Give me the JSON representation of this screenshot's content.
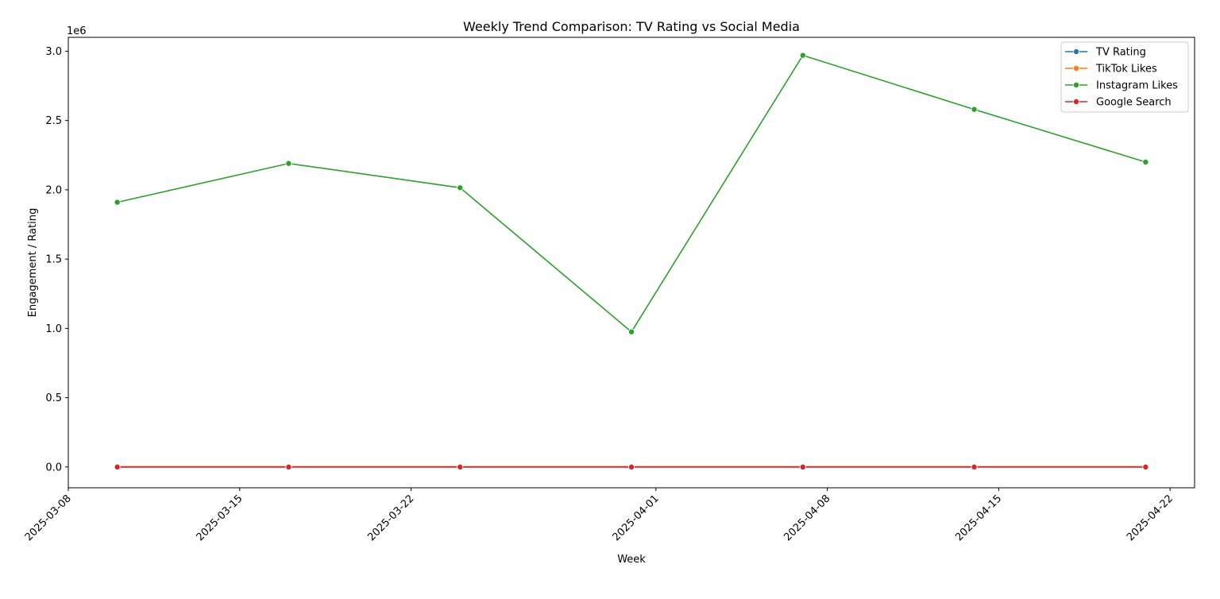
{
  "chart_data": {
    "type": "line",
    "title": "Weekly Trend Comparison: TV Rating vs Social Media",
    "xlabel": "Week",
    "ylabel": "Engagement / Rating",
    "y_offset_label": "1e6",
    "x": [
      "2025-03-10",
      "2025-03-17",
      "2025-03-24",
      "2025-03-31",
      "2025-04-07",
      "2025-04-14",
      "2025-04-21"
    ],
    "xlim": [
      "2025-03-08",
      "2025-04-23"
    ],
    "x_ticks": [
      "2025-03-08",
      "2025-03-15",
      "2025-03-22",
      "2025-04-01",
      "2025-04-08",
      "2025-04-15",
      "2025-04-22"
    ],
    "ylim": [
      -0.15,
      3.1
    ],
    "y_ticks": [
      0.0,
      0.5,
      1.0,
      1.5,
      2.0,
      2.5,
      3.0
    ],
    "y_tick_labels": [
      "0.0",
      "0.5",
      "1.0",
      "1.5",
      "2.0",
      "2.5",
      "3.0"
    ],
    "grid": false,
    "legend_position": "top-right",
    "series": [
      {
        "name": "TV Rating",
        "color": "#1f77b4",
        "values": [
          0.0,
          0.0,
          0.0,
          0.0,
          0.0,
          0.0,
          0.0
        ]
      },
      {
        "name": "TikTok Likes",
        "color": "#ff7f0e",
        "values": [
          0.002,
          0.002,
          0.002,
          0.002,
          0.002,
          0.002,
          0.002
        ]
      },
      {
        "name": "Instagram Likes",
        "color": "#2ca02c",
        "values": [
          1.91,
          2.19,
          2.015,
          0.975,
          2.97,
          2.58,
          2.2
        ]
      },
      {
        "name": "Google Search",
        "color": "#d62728",
        "values": [
          0.0,
          0.0,
          0.0,
          0.0,
          0.0,
          0.0,
          0.0
        ]
      }
    ]
  }
}
